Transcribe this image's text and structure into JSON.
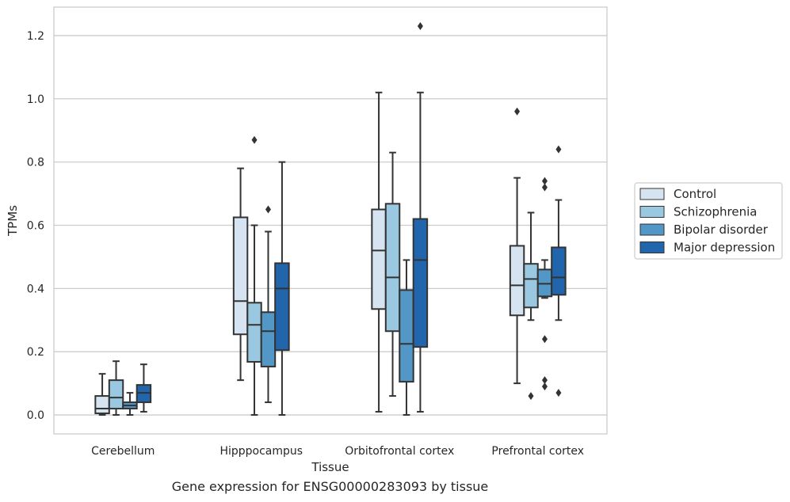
{
  "caption": "Gene expression for ENSG00000283093 by tissue",
  "chart_data": {
    "type": "boxplot",
    "xlabel": "Tissue",
    "ylabel": "TPMs",
    "ylim": [
      -0.06,
      1.29
    ],
    "yticks": [
      0.0,
      0.2,
      0.4,
      0.6,
      0.8,
      1.0,
      1.2
    ],
    "ytick_labels": [
      "0.0",
      "0.2",
      "0.4",
      "0.6",
      "0.8",
      "1.0",
      "1.2"
    ],
    "grid": true,
    "legend_position": "right",
    "categories": [
      "Cerebellum",
      "Hipppocampus",
      "Orbitofrontal cortex",
      "Prefrontal cortex"
    ],
    "series": [
      {
        "name": "Control",
        "color": "#d6e4f2",
        "boxes": [
          {
            "whislo": 0.0,
            "q1": 0.005,
            "med": 0.02,
            "q3": 0.06,
            "whishi": 0.13,
            "fliers": []
          },
          {
            "whislo": 0.11,
            "q1": 0.255,
            "med": 0.36,
            "q3": 0.625,
            "whishi": 0.78,
            "fliers": []
          },
          {
            "whislo": 0.01,
            "q1": 0.335,
            "med": 0.52,
            "q3": 0.65,
            "whishi": 1.02,
            "fliers": []
          },
          {
            "whislo": 0.1,
            "q1": 0.315,
            "med": 0.41,
            "q3": 0.535,
            "whishi": 0.75,
            "fliers": [
              0.96
            ]
          }
        ]
      },
      {
        "name": "Schizophrenia",
        "color": "#9ac8e0",
        "boxes": [
          {
            "whislo": 0.0,
            "q1": 0.02,
            "med": 0.055,
            "q3": 0.11,
            "whishi": 0.17,
            "fliers": []
          },
          {
            "whislo": 0.0,
            "q1": 0.168,
            "med": 0.285,
            "q3": 0.355,
            "whishi": 0.6,
            "fliers": [
              0.87
            ]
          },
          {
            "whislo": 0.06,
            "q1": 0.265,
            "med": 0.435,
            "q3": 0.668,
            "whishi": 0.83,
            "fliers": []
          },
          {
            "whislo": 0.3,
            "q1": 0.34,
            "med": 0.43,
            "q3": 0.478,
            "whishi": 0.64,
            "fliers": [
              0.06
            ]
          }
        ]
      },
      {
        "name": "Bipolar disorder",
        "color": "#5297c6",
        "boxes": [
          {
            "whislo": 0.0,
            "q1": 0.02,
            "med": 0.03,
            "q3": 0.04,
            "whishi": 0.07,
            "fliers": []
          },
          {
            "whislo": 0.04,
            "q1": 0.153,
            "med": 0.265,
            "q3": 0.325,
            "whishi": 0.58,
            "fliers": [
              0.65
            ]
          },
          {
            "whislo": 0.0,
            "q1": 0.105,
            "med": 0.225,
            "q3": 0.395,
            "whishi": 0.49,
            "fliers": []
          },
          {
            "whislo": 0.37,
            "q1": 0.375,
            "med": 0.415,
            "q3": 0.46,
            "whishi": 0.49,
            "fliers": [
              0.74,
              0.72,
              0.24,
              0.11,
              0.09
            ]
          }
        ]
      },
      {
        "name": "Major depression",
        "color": "#2166ac",
        "boxes": [
          {
            "whislo": 0.01,
            "q1": 0.04,
            "med": 0.07,
            "q3": 0.095,
            "whishi": 0.16,
            "fliers": []
          },
          {
            "whislo": 0.0,
            "q1": 0.205,
            "med": 0.4,
            "q3": 0.48,
            "whishi": 0.8,
            "fliers": []
          },
          {
            "whislo": 0.01,
            "q1": 0.215,
            "med": 0.49,
            "q3": 0.62,
            "whishi": 1.02,
            "fliers": [
              1.23
            ]
          },
          {
            "whislo": 0.3,
            "q1": 0.38,
            "med": 0.435,
            "q3": 0.53,
            "whishi": 0.68,
            "fliers": [
              0.84,
              0.07
            ]
          }
        ]
      }
    ]
  }
}
